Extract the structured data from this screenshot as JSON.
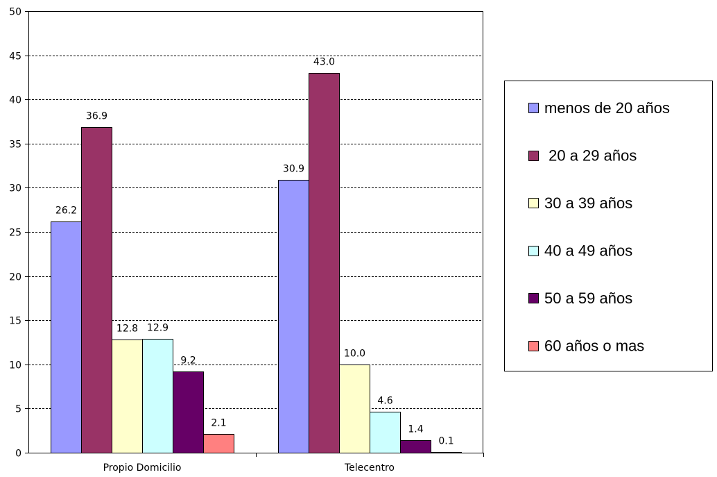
{
  "chart_data": {
    "type": "bar",
    "categories": [
      "Propio Domicilio",
      "Telecentro"
    ],
    "series": [
      {
        "name": "menos de 20 años",
        "values": [
          26.2,
          30.9
        ],
        "color": "#9999FF"
      },
      {
        "name": " 20 a 29 años",
        "values": [
          36.9,
          43.0
        ],
        "color": "#993366"
      },
      {
        "name": "30 a 39 años",
        "values": [
          12.8,
          10.0
        ],
        "color": "#FFFFCC"
      },
      {
        "name": "40 a 49 años",
        "values": [
          12.9,
          4.6
        ],
        "color": "#CCFFFF"
      },
      {
        "name": "50 a 59 años",
        "values": [
          9.2,
          1.4
        ],
        "color": "#660066"
      },
      {
        "name": "60 años o mas",
        "values": [
          2.1,
          0.1
        ],
        "color": "#FF8080"
      }
    ],
    "data_labels": [
      [
        "26.2",
        "30.9"
      ],
      [
        "36.9",
        "43.0"
      ],
      [
        "12.8",
        "10.0"
      ],
      [
        "12.9",
        "4.6"
      ],
      [
        "9.2",
        "1.4"
      ],
      [
        "2.1",
        "0.1"
      ]
    ],
    "ylim": [
      0,
      50
    ],
    "yticks": [
      "0",
      "5",
      "10",
      "15",
      "20",
      "25",
      "30",
      "35",
      "40",
      "45",
      "50"
    ],
    "grid": true,
    "legend_position": "right",
    "title": "",
    "xlabel": "",
    "ylabel": ""
  }
}
